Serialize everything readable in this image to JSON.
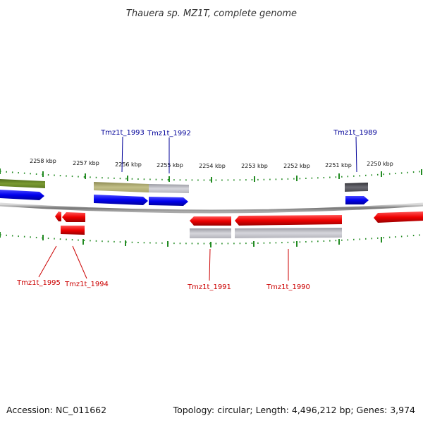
{
  "title": "Thauera sp. MZ1T, complete genome",
  "footer": {
    "accession": "Accession: NC_011662",
    "summary": "Topology: circular; Length: 4,496,212 bp; Genes: 3,974"
  },
  "kbp_labels": [
    "2258 kbp",
    "2257 kbp",
    "2256 kbp",
    "2255 kbp",
    "2254 kbp",
    "2253 kbp",
    "2252 kbp",
    "2251 kbp",
    "2250 kbp"
  ],
  "gene_labels": {
    "forward": [
      "Tmz1t_1993",
      "Tmz1t_1992",
      "Tmz1t_1989"
    ],
    "reverse": [
      "Tmz1t_1995",
      "Tmz1t_1994",
      "Tmz1t_1991",
      "Tmz1t_1990"
    ]
  },
  "colors": {
    "forward_gene": "#0000ee",
    "reverse_gene": "#ee0000",
    "backbone": "#888888",
    "ticks": "#228b22",
    "olive_feature": "#6b8e23",
    "khaki_feature": "#b5b27a",
    "silver_feature": "#c0c0c8",
    "dark_feature": "#555560"
  }
}
